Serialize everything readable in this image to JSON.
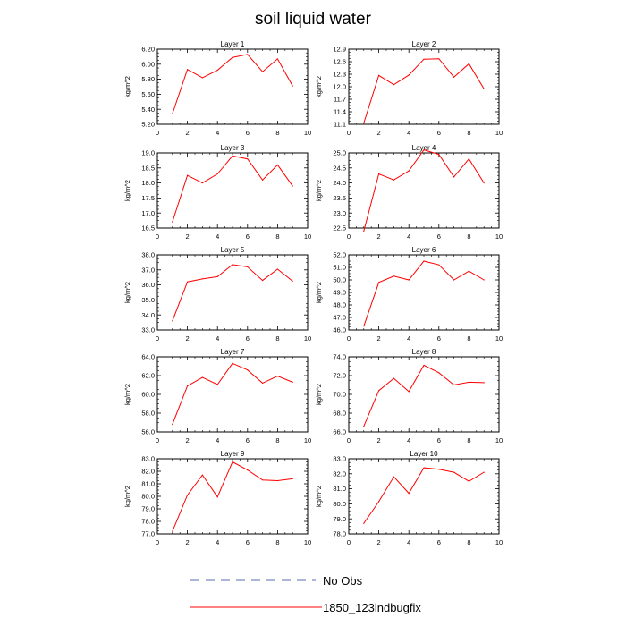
{
  "figure": {
    "title": "soil liquid water"
  },
  "legend": {
    "items": [
      {
        "label": "No Obs",
        "color": "#5a6fb0",
        "dash": true
      },
      {
        "label": "1850_123lndbugfix",
        "color": "#ff0000",
        "dash": false
      }
    ]
  },
  "chart_data": [
    {
      "type": "line",
      "title": "Layer 1",
      "xlabel": "",
      "ylabel": "kg/m^2",
      "xlim": [
        0,
        10
      ],
      "ylim": [
        5.2,
        6.2
      ],
      "xticks": [
        "0",
        "2",
        "4",
        "6",
        "8",
        "10"
      ],
      "yticks": [
        "5.20",
        "5.40",
        "5.60",
        "5.80",
        "6.00",
        "6.20"
      ],
      "series": [
        {
          "color": "#ff0000",
          "x": [
            1,
            2,
            3,
            4,
            5,
            6,
            7,
            8,
            9
          ],
          "values": [
            5.34,
            5.93,
            5.82,
            5.92,
            6.09,
            6.13,
            5.9,
            6.07,
            5.71
          ]
        }
      ]
    },
    {
      "type": "line",
      "title": "Layer 2",
      "xlabel": "",
      "ylabel": "kg/m^2",
      "xlim": [
        0,
        10
      ],
      "ylim": [
        11.1,
        12.9
      ],
      "xticks": [
        "0",
        "2",
        "4",
        "6",
        "8",
        "10"
      ],
      "yticks": [
        "11.1",
        "11.4",
        "11.7",
        "12.0",
        "12.3",
        "12.6",
        "12.9"
      ],
      "series": [
        {
          "color": "#ff0000",
          "x": [
            1,
            2,
            3,
            4,
            5,
            6,
            7,
            8,
            9
          ],
          "values": [
            11.13,
            12.27,
            12.05,
            12.28,
            12.66,
            12.67,
            12.23,
            12.55,
            11.95
          ]
        }
      ]
    },
    {
      "type": "line",
      "title": "Layer 3",
      "xlabel": "",
      "ylabel": "kg/m^2",
      "xlim": [
        0,
        10
      ],
      "ylim": [
        16.5,
        19.0
      ],
      "xticks": [
        "0",
        "2",
        "4",
        "6",
        "8",
        "10"
      ],
      "yticks": [
        "16.5",
        "17.0",
        "17.5",
        "18.0",
        "18.5",
        "19.0"
      ],
      "series": [
        {
          "color": "#ff0000",
          "x": [
            1,
            2,
            3,
            4,
            5,
            6,
            7,
            8,
            9
          ],
          "values": [
            16.7,
            18.25,
            18.0,
            18.3,
            18.9,
            18.8,
            18.1,
            18.6,
            17.9
          ]
        }
      ]
    },
    {
      "type": "line",
      "title": "Layer 4",
      "xlabel": "",
      "ylabel": "kg/m^2",
      "xlim": [
        0,
        10
      ],
      "ylim": [
        22.5,
        25.0
      ],
      "xticks": [
        "0",
        "2",
        "4",
        "6",
        "8",
        "10"
      ],
      "yticks": [
        "22.5",
        "23.0",
        "23.5",
        "24.0",
        "24.5",
        "25.0"
      ],
      "series": [
        {
          "color": "#ff0000",
          "x": [
            1,
            2,
            3,
            4,
            5,
            6,
            7,
            8,
            9
          ],
          "values": [
            22.4,
            24.3,
            24.1,
            24.4,
            25.1,
            24.95,
            24.2,
            24.8,
            24.0
          ]
        }
      ]
    },
    {
      "type": "line",
      "title": "Layer 5",
      "xlabel": "",
      "ylabel": "kg/m^2",
      "xlim": [
        0,
        10
      ],
      "ylim": [
        33.0,
        38.0
      ],
      "xticks": [
        "0",
        "2",
        "4",
        "6",
        "8",
        "10"
      ],
      "yticks": [
        "33.0",
        "34.0",
        "35.0",
        "36.0",
        "37.0",
        "38.0"
      ],
      "series": [
        {
          "color": "#ff0000",
          "x": [
            1,
            2,
            3,
            4,
            5,
            6,
            7,
            8,
            9
          ],
          "values": [
            33.6,
            36.2,
            36.4,
            36.55,
            37.35,
            37.2,
            36.3,
            37.05,
            36.25
          ]
        }
      ]
    },
    {
      "type": "line",
      "title": "Layer 6",
      "xlabel": "",
      "ylabel": "kg/m^2",
      "xlim": [
        0,
        10
      ],
      "ylim": [
        46.0,
        52.0
      ],
      "xticks": [
        "0",
        "2",
        "4",
        "6",
        "8",
        "10"
      ],
      "yticks": [
        "46.0",
        "47.0",
        "48.0",
        "49.0",
        "50.0",
        "51.0",
        "52.0"
      ],
      "series": [
        {
          "color": "#ff0000",
          "x": [
            1,
            2,
            3,
            4,
            5,
            6,
            7,
            8,
            9
          ],
          "values": [
            46.3,
            49.8,
            50.3,
            50.0,
            51.5,
            51.2,
            50.0,
            50.7,
            50.0
          ]
        }
      ]
    },
    {
      "type": "line",
      "title": "Layer 7",
      "xlabel": "",
      "ylabel": "kg/m^2",
      "xlim": [
        0,
        10
      ],
      "ylim": [
        56.0,
        64.0
      ],
      "xticks": [
        "0",
        "2",
        "4",
        "6",
        "8",
        "10"
      ],
      "yticks": [
        "56.0",
        "58.0",
        "60.0",
        "62.0",
        "64.0"
      ],
      "series": [
        {
          "color": "#ff0000",
          "x": [
            1,
            2,
            3,
            4,
            5,
            6,
            7,
            8,
            9
          ],
          "values": [
            56.8,
            60.9,
            61.8,
            61.05,
            63.3,
            62.6,
            61.2,
            61.95,
            61.3
          ]
        }
      ]
    },
    {
      "type": "line",
      "title": "Layer 8",
      "xlabel": "",
      "ylabel": "kg/m^2",
      "xlim": [
        0,
        10
      ],
      "ylim": [
        66.0,
        74.0
      ],
      "xticks": [
        "0",
        "2",
        "4",
        "6",
        "8",
        "10"
      ],
      "yticks": [
        "66.0",
        "68.0",
        "70.0",
        "72.0",
        "74.0"
      ],
      "series": [
        {
          "color": "#ff0000",
          "x": [
            1,
            2,
            3,
            4,
            5,
            6,
            7,
            8,
            9
          ],
          "values": [
            66.6,
            70.4,
            71.7,
            70.3,
            73.1,
            72.3,
            71.0,
            71.3,
            71.25
          ]
        }
      ]
    },
    {
      "type": "line",
      "title": "Layer 9",
      "xlabel": "",
      "ylabel": "kg/m^2",
      "xlim": [
        0,
        10
      ],
      "ylim": [
        77.0,
        83.0
      ],
      "xticks": [
        "0",
        "2",
        "4",
        "6",
        "8",
        "10"
      ],
      "yticks": [
        "77.0",
        "78.0",
        "79.0",
        "80.0",
        "81.0",
        "82.0",
        "83.0"
      ],
      "series": [
        {
          "color": "#ff0000",
          "x": [
            1,
            2,
            3,
            4,
            5,
            6,
            7,
            8,
            9
          ],
          "values": [
            77.2,
            80.1,
            81.7,
            79.95,
            82.75,
            82.1,
            81.3,
            81.25,
            81.4
          ]
        }
      ]
    },
    {
      "type": "line",
      "title": "Layer 10",
      "xlabel": "",
      "ylabel": "kg/m^2",
      "xlim": [
        0,
        10
      ],
      "ylim": [
        78.0,
        83.0
      ],
      "xticks": [
        "0",
        "2",
        "4",
        "6",
        "8",
        "10"
      ],
      "yticks": [
        "78.0",
        "79.0",
        "80.0",
        "81.0",
        "82.0",
        "83.0"
      ],
      "series": [
        {
          "color": "#ff0000",
          "x": [
            1,
            2,
            3,
            4,
            5,
            6,
            7,
            8,
            9
          ],
          "values": [
            78.7,
            80.15,
            81.8,
            80.7,
            82.4,
            82.3,
            82.1,
            81.5,
            82.1
          ]
        }
      ]
    }
  ]
}
